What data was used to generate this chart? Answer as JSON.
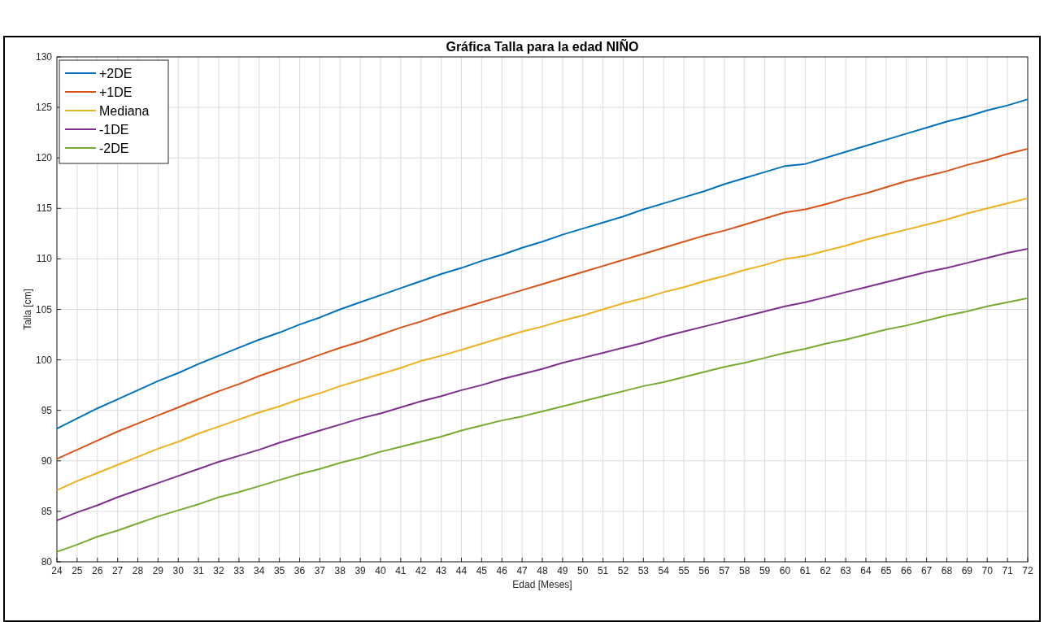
{
  "chart_data": {
    "type": "line",
    "title": "Gráfica Talla para la edad NIÑO",
    "xlabel": "Edad [Meses]",
    "ylabel": "Talla [cm]",
    "x": [
      24,
      25,
      26,
      27,
      28,
      29,
      30,
      31,
      32,
      33,
      34,
      35,
      36,
      37,
      38,
      39,
      40,
      41,
      42,
      43,
      44,
      45,
      46,
      47,
      48,
      49,
      50,
      51,
      52,
      53,
      54,
      55,
      56,
      57,
      58,
      59,
      60,
      61,
      62,
      63,
      64,
      65,
      66,
      67,
      68,
      69,
      70,
      71,
      72
    ],
    "xlim": [
      24,
      72
    ],
    "xticks": [
      24,
      25,
      26,
      27,
      28,
      29,
      30,
      31,
      32,
      33,
      34,
      35,
      36,
      37,
      38,
      39,
      40,
      41,
      42,
      43,
      44,
      45,
      46,
      47,
      48,
      49,
      50,
      51,
      52,
      53,
      54,
      55,
      56,
      57,
      58,
      59,
      60,
      61,
      62,
      63,
      64,
      65,
      66,
      67,
      68,
      69,
      70,
      71,
      72
    ],
    "ylim": [
      80,
      130
    ],
    "yticks": [
      80,
      85,
      90,
      95,
      100,
      105,
      110,
      115,
      120,
      125,
      130
    ],
    "grid": true,
    "legend": "top left",
    "marker": "none",
    "line_style": "solid",
    "series": [
      {
        "name": "+2DE",
        "color": "#0072bd",
        "values": [
          93.2,
          94.2,
          95.2,
          96.1,
          97.0,
          97.9,
          98.7,
          99.6,
          100.4,
          101.2,
          102.0,
          102.7,
          103.5,
          104.2,
          105.0,
          105.7,
          106.4,
          107.1,
          107.8,
          108.5,
          109.1,
          109.8,
          110.4,
          111.1,
          111.7,
          112.4,
          113.0,
          113.6,
          114.2,
          114.9,
          115.5,
          116.1,
          116.7,
          117.4,
          118.0,
          118.6,
          119.2,
          119.4,
          120.0,
          120.6,
          121.2,
          121.8,
          122.4,
          123.0,
          123.6,
          124.1,
          124.7,
          125.2,
          125.8
        ]
      },
      {
        "name": "+1DE",
        "color": "#d95319",
        "values": [
          90.2,
          91.1,
          92.0,
          92.9,
          93.7,
          94.5,
          95.3,
          96.1,
          96.9,
          97.6,
          98.4,
          99.1,
          99.8,
          100.5,
          101.2,
          101.8,
          102.5,
          103.2,
          103.8,
          104.5,
          105.1,
          105.7,
          106.3,
          106.9,
          107.5,
          108.1,
          108.7,
          109.3,
          109.9,
          110.5,
          111.1,
          111.7,
          112.3,
          112.8,
          113.4,
          114.0,
          114.6,
          114.9,
          115.4,
          116.0,
          116.5,
          117.1,
          117.7,
          118.2,
          118.7,
          119.3,
          119.8,
          120.4,
          120.9
        ]
      },
      {
        "name": "Mediana",
        "color": "#edb120",
        "values": [
          87.1,
          88.0,
          88.8,
          89.6,
          90.4,
          91.2,
          91.9,
          92.7,
          93.4,
          94.1,
          94.8,
          95.4,
          96.1,
          96.7,
          97.4,
          98.0,
          98.6,
          99.2,
          99.9,
          100.4,
          101.0,
          101.6,
          102.2,
          102.8,
          103.3,
          103.9,
          104.4,
          105.0,
          105.6,
          106.1,
          106.7,
          107.2,
          107.8,
          108.3,
          108.9,
          109.4,
          110.0,
          110.3,
          110.8,
          111.3,
          111.9,
          112.4,
          112.9,
          113.4,
          113.9,
          114.5,
          115.0,
          115.5,
          116.0
        ]
      },
      {
        "name": "-1DE",
        "color": "#7e2f8e",
        "values": [
          84.1,
          84.9,
          85.6,
          86.4,
          87.1,
          87.8,
          88.5,
          89.2,
          89.9,
          90.5,
          91.1,
          91.8,
          92.4,
          93.0,
          93.6,
          94.2,
          94.7,
          95.3,
          95.9,
          96.4,
          97.0,
          97.5,
          98.1,
          98.6,
          99.1,
          99.7,
          100.2,
          100.7,
          101.2,
          101.7,
          102.3,
          102.8,
          103.3,
          103.8,
          104.3,
          104.8,
          105.3,
          105.7,
          106.2,
          106.7,
          107.2,
          107.7,
          108.2,
          108.7,
          109.1,
          109.6,
          110.1,
          110.6,
          111.0
        ]
      },
      {
        "name": "-2DE",
        "color": "#77ac30",
        "values": [
          81.0,
          81.7,
          82.5,
          83.1,
          83.8,
          84.5,
          85.1,
          85.7,
          86.4,
          86.9,
          87.5,
          88.1,
          88.7,
          89.2,
          89.8,
          90.3,
          90.9,
          91.4,
          91.9,
          92.4,
          93.0,
          93.5,
          94.0,
          94.4,
          94.9,
          95.4,
          95.9,
          96.4,
          96.9,
          97.4,
          97.8,
          98.3,
          98.8,
          99.3,
          99.7,
          100.2,
          100.7,
          101.1,
          101.6,
          102.0,
          102.5,
          103.0,
          103.4,
          103.9,
          104.4,
          104.8,
          105.3,
          105.7,
          106.1
        ]
      }
    ]
  }
}
